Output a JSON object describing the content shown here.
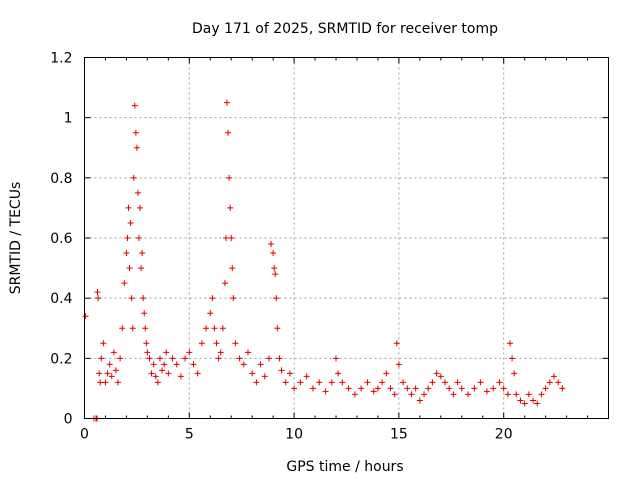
{
  "chart_data": {
    "type": "scatter",
    "title": "Day 171 of 2025, SRMTID for receiver tomp",
    "xlabel": "GPS time / hours",
    "ylabel": "SRMTID / TECUs",
    "xlim": [
      0,
      25
    ],
    "ylim": [
      0,
      1.2
    ],
    "xticks": [
      0,
      5,
      10,
      15,
      20
    ],
    "xtick_labels": [
      "0",
      "5",
      "10",
      "15",
      "20"
    ],
    "yticks": [
      0,
      0.2,
      0.4,
      0.6,
      0.8,
      1.0,
      1.2
    ],
    "ytick_labels": [
      "0",
      "0.2",
      "0.4",
      "0.6",
      "0.8",
      "1",
      "1.2"
    ],
    "grid": true,
    "marker": "+",
    "color": "#e00000",
    "series": [
      {
        "name": "SRMTID",
        "x": [
          0.05,
          0.45,
          0.55,
          0.6,
          0.62,
          0.65,
          0.7,
          0.75,
          0.8,
          0.9,
          1.0,
          1.1,
          1.2,
          1.3,
          1.4,
          1.5,
          1.6,
          1.7,
          1.8,
          1.9,
          2.0,
          2.05,
          2.1,
          2.15,
          2.2,
          2.25,
          2.3,
          2.35,
          2.4,
          2.45,
          2.5,
          2.55,
          2.6,
          2.65,
          2.7,
          2.75,
          2.8,
          2.85,
          2.9,
          2.95,
          3.0,
          3.1,
          3.2,
          3.3,
          3.4,
          3.5,
          3.6,
          3.7,
          3.8,
          3.9,
          4.0,
          4.2,
          4.4,
          4.6,
          4.8,
          5.0,
          5.2,
          5.4,
          5.6,
          5.8,
          6.0,
          6.1,
          6.2,
          6.3,
          6.4,
          6.5,
          6.6,
          6.7,
          6.75,
          6.8,
          6.85,
          6.9,
          6.95,
          7.0,
          7.05,
          7.1,
          7.2,
          7.4,
          7.6,
          7.8,
          8.0,
          8.2,
          8.4,
          8.6,
          8.8,
          8.9,
          9.0,
          9.05,
          9.1,
          9.15,
          9.2,
          9.3,
          9.4,
          9.6,
          9.8,
          10.0,
          10.3,
          10.6,
          10.9,
          11.2,
          11.5,
          11.8,
          12.0,
          12.1,
          12.3,
          12.6,
          12.9,
          13.2,
          13.5,
          13.8,
          14.0,
          14.2,
          14.4,
          14.6,
          14.8,
          14.9,
          15.0,
          15.2,
          15.4,
          15.6,
          15.8,
          16.0,
          16.2,
          16.4,
          16.6,
          16.8,
          17.0,
          17.2,
          17.4,
          17.6,
          17.8,
          18.0,
          18.3,
          18.6,
          18.9,
          19.2,
          19.5,
          19.8,
          20.0,
          20.2,
          20.3,
          20.4,
          20.5,
          20.6,
          20.8,
          21.0,
          21.2,
          21.4,
          21.6,
          21.8,
          22.0,
          22.2,
          22.4,
          22.6,
          22.8
        ],
        "y": [
          0.34,
          0.0,
          0.0,
          0.0,
          0.42,
          0.4,
          0.15,
          0.12,
          0.2,
          0.25,
          0.12,
          0.15,
          0.18,
          0.14,
          0.22,
          0.16,
          0.12,
          0.2,
          0.3,
          0.45,
          0.55,
          0.6,
          0.7,
          0.5,
          0.65,
          0.4,
          0.3,
          0.8,
          1.04,
          0.95,
          0.9,
          0.75,
          0.6,
          0.7,
          0.5,
          0.55,
          0.4,
          0.35,
          0.3,
          0.25,
          0.22,
          0.2,
          0.15,
          0.18,
          0.14,
          0.12,
          0.2,
          0.16,
          0.18,
          0.22,
          0.15,
          0.2,
          0.18,
          0.14,
          0.2,
          0.22,
          0.18,
          0.15,
          0.25,
          0.3,
          0.35,
          0.4,
          0.3,
          0.25,
          0.2,
          0.22,
          0.3,
          0.45,
          0.6,
          1.05,
          0.95,
          0.8,
          0.7,
          0.6,
          0.5,
          0.4,
          0.25,
          0.2,
          0.18,
          0.22,
          0.15,
          0.12,
          0.18,
          0.14,
          0.2,
          0.58,
          0.55,
          0.5,
          0.48,
          0.4,
          0.3,
          0.2,
          0.16,
          0.12,
          0.15,
          0.1,
          0.12,
          0.14,
          0.1,
          0.12,
          0.09,
          0.12,
          0.2,
          0.15,
          0.12,
          0.1,
          0.08,
          0.1,
          0.12,
          0.09,
          0.1,
          0.12,
          0.15,
          0.1,
          0.08,
          0.25,
          0.18,
          0.12,
          0.1,
          0.08,
          0.1,
          0.06,
          0.08,
          0.1,
          0.12,
          0.15,
          0.14,
          0.12,
          0.1,
          0.08,
          0.12,
          0.1,
          0.08,
          0.1,
          0.12,
          0.09,
          0.1,
          0.12,
          0.1,
          0.08,
          0.25,
          0.2,
          0.15,
          0.08,
          0.06,
          0.05,
          0.08,
          0.06,
          0.05,
          0.08,
          0.1,
          0.12,
          0.14,
          0.12,
          0.1
        ]
      }
    ]
  }
}
